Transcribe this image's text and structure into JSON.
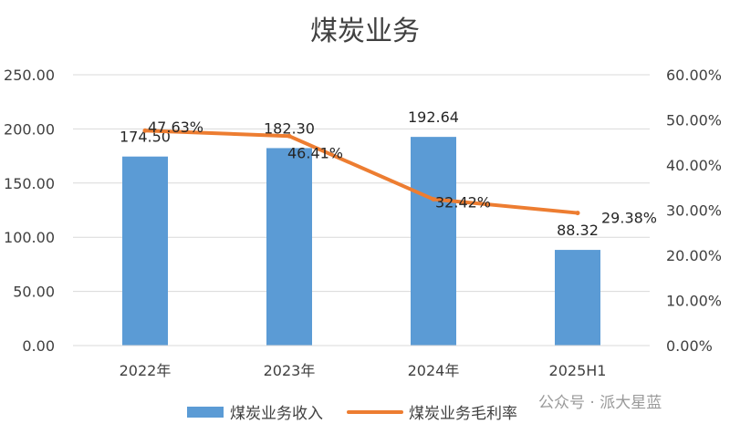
{
  "chart_data": {
    "type": "bar+line",
    "title": "煤炭业务",
    "categories": [
      "2022年",
      "2023年",
      "2024年",
      "2025H1"
    ],
    "series": [
      {
        "name": "煤炭业务收入",
        "type": "bar",
        "axis": "left",
        "values": [
          174.5,
          182.3,
          192.64,
          88.32
        ],
        "labels": [
          "174.50",
          "182.30",
          "192.64",
          "88.32"
        ],
        "color": "#5b9bd5"
      },
      {
        "name": "煤炭业务毛利率",
        "type": "line",
        "axis": "right",
        "values": [
          47.63,
          46.41,
          32.42,
          29.38
        ],
        "labels": [
          "47.63%",
          "46.41%",
          "32.42%",
          "29.38%"
        ],
        "color": "#ed7d31"
      }
    ],
    "y_left": {
      "ylim": [
        0,
        250
      ],
      "ticks": [
        "0.00",
        "50.00",
        "100.00",
        "150.00",
        "200.00",
        "250.00"
      ]
    },
    "y_right": {
      "ylim": [
        0,
        60
      ],
      "ticks": [
        "0.00%",
        "10.00%",
        "20.00%",
        "30.00%",
        "40.00%",
        "50.00%",
        "60.00%"
      ]
    },
    "grid": true,
    "legend_position": "bottom"
  },
  "watermark": "公众号 · 派大星蓝"
}
